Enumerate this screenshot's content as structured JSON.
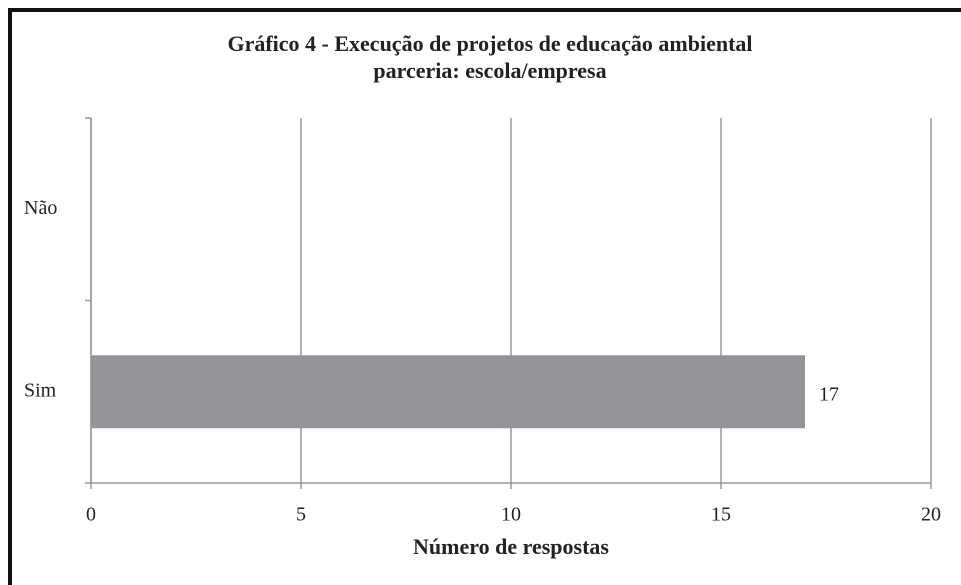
{
  "chart_data": {
    "type": "bar",
    "orientation": "horizontal",
    "title": [
      "Gráfico 4 - Execução de projetos de educação ambiental",
      "parceria: escola/empresa"
    ],
    "categories": [
      "Não",
      "Sim"
    ],
    "values": [
      0,
      17
    ],
    "color": "#939598",
    "xlabel": "Número de respostas",
    "xlim": [
      0,
      20
    ],
    "xticks": [
      0,
      5,
      10,
      15,
      20
    ],
    "grid": true
  }
}
